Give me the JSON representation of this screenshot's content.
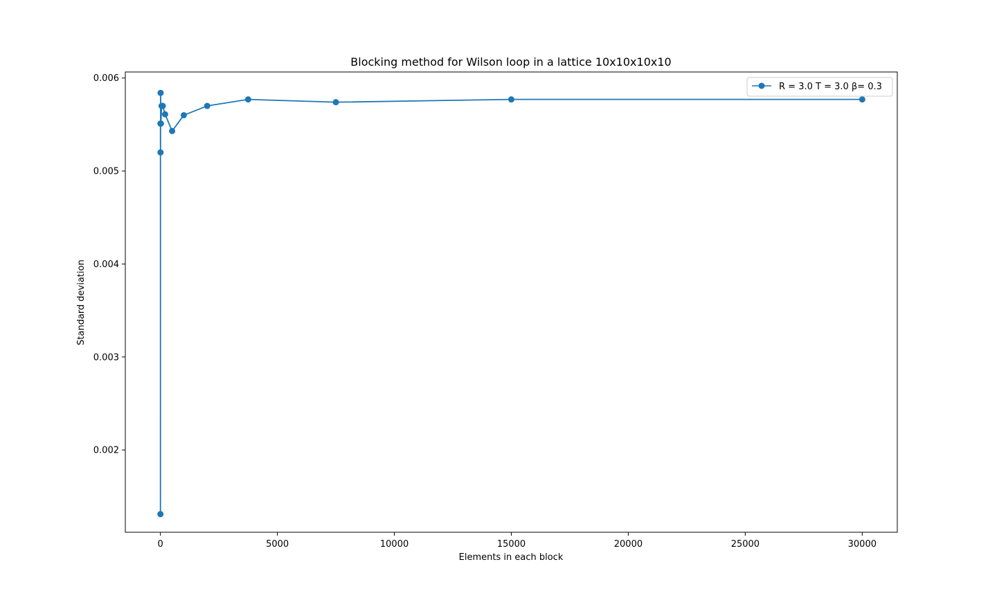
{
  "chart_data": {
    "type": "line",
    "title": "Blocking method for Wilson loop in a lattice 10x10x10x10",
    "xlabel": "Elements in each block",
    "ylabel": "Standard deviation",
    "xlim": [
      -1500,
      31500
    ],
    "ylim": [
      0.001115,
      0.006065
    ],
    "xticks": [
      0,
      5000,
      10000,
      15000,
      20000,
      25000,
      30000
    ],
    "xtick_labels": [
      "0",
      "5000",
      "10000",
      "15000",
      "20000",
      "25000",
      "30000"
    ],
    "yticks": [
      0.002,
      0.003,
      0.004,
      0.005,
      0.006
    ],
    "ytick_labels": [
      "0.002",
      "0.003",
      "0.004",
      "0.005",
      "0.006"
    ],
    "grid": false,
    "legend_position": "top-right",
    "color": "#1f77b4",
    "series": [
      {
        "name": "R = 3.0 T = 3.0 β= 0.3",
        "marker": "circle",
        "x": [
          1,
          2,
          5,
          10,
          20,
          50,
          100,
          200,
          500,
          1000,
          2000,
          3750,
          7500,
          15000,
          30000
        ],
        "y": [
          0.00131,
          0.00551,
          0.0052,
          0.00584,
          0.00551,
          0.0057,
          0.0057,
          0.00561,
          0.00543,
          0.0056,
          0.0057,
          0.00577,
          0.00574,
          0.00577,
          0.00577
        ]
      }
    ]
  }
}
